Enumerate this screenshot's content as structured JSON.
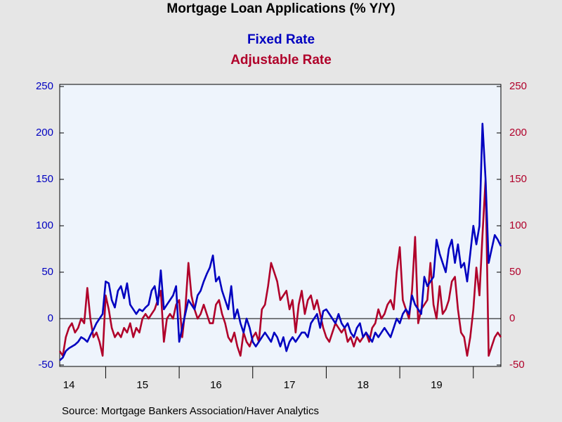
{
  "chart_data": {
    "type": "line",
    "title": "Mortgage Loan Applications (% Y/Y)",
    "source": "Source:  Mortgage Bankers Association/Haver Analytics",
    "categories": [
      null,
      null,
      null,
      "14",
      null,
      null,
      null,
      null,
      null,
      null,
      null,
      null,
      null,
      null,
      null,
      null,
      null,
      null,
      null,
      null,
      null,
      null,
      null,
      null,
      null,
      null,
      null,
      "15",
      null,
      null,
      null,
      null,
      null,
      null,
      null,
      null,
      null,
      null,
      null,
      null,
      null,
      null,
      null,
      null,
      null,
      null,
      null,
      null,
      null,
      null,
      null,
      "16",
      null,
      null,
      null,
      null,
      null,
      null,
      null,
      null,
      null,
      null,
      null,
      null,
      null,
      null,
      null,
      null,
      null,
      null,
      null,
      null,
      null,
      null,
      null,
      "17",
      null,
      null,
      null,
      null,
      null,
      null,
      null,
      null,
      null,
      null,
      null,
      null,
      null,
      null,
      null,
      null,
      null,
      null,
      null,
      null,
      null,
      null,
      null,
      "18",
      null,
      null,
      null,
      null,
      null,
      null,
      null,
      null,
      null,
      null,
      null,
      null,
      null,
      null,
      null,
      null,
      null,
      null,
      null,
      null,
      null,
      null,
      null,
      "19",
      null,
      null,
      null,
      null,
      null,
      null,
      null,
      null,
      null,
      null,
      null,
      null,
      null,
      null,
      null,
      null,
      null,
      null,
      null,
      null,
      null
    ],
    "series": [
      {
        "name": "Fixed Rate",
        "color": "#0000c0",
        "axis": "y",
        "values": [
          -45,
          -42,
          -35,
          -32,
          -30,
          -28,
          -25,
          -20,
          -22,
          -25,
          -18,
          -12,
          -5,
          0,
          5,
          40,
          38,
          20,
          12,
          30,
          35,
          22,
          38,
          15,
          10,
          5,
          10,
          8,
          12,
          15,
          30,
          35,
          15,
          52,
          10,
          15,
          20,
          25,
          35,
          -25,
          -10,
          5,
          20,
          15,
          10,
          25,
          30,
          40,
          48,
          55,
          68,
          40,
          45,
          30,
          20,
          10,
          35,
          0,
          10,
          -5,
          -15,
          0,
          -10,
          -25,
          -30,
          -25,
          -20,
          -15,
          -20,
          -25,
          -15,
          -20,
          -30,
          -20,
          -35,
          -25,
          -20,
          -25,
          -20,
          -15,
          -15,
          -20,
          -5,
          0,
          5,
          -10,
          8,
          10,
          5,
          0,
          -5,
          5,
          -5,
          -10,
          -5,
          -15,
          -20,
          -10,
          -5,
          -20,
          -15,
          -20,
          -25,
          -15,
          -20,
          -15,
          -10,
          -15,
          -20,
          -10,
          0,
          -5,
          5,
          10,
          5,
          25,
          15,
          10,
          5,
          45,
          35,
          40,
          45,
          85,
          70,
          60,
          50,
          75,
          85,
          60,
          80,
          55,
          60,
          40,
          70,
          100,
          80,
          100,
          210,
          150,
          60,
          75,
          90,
          85,
          78
        ]
      },
      {
        "name": "Adjustable Rate",
        "color": "#b0002a",
        "axis": "y2",
        "values": [
          -35,
          -40,
          -20,
          -10,
          -5,
          -15,
          -10,
          0,
          -5,
          33,
          0,
          -20,
          -15,
          -25,
          -40,
          25,
          10,
          -10,
          -20,
          -15,
          -20,
          -10,
          -15,
          -5,
          -20,
          -10,
          -15,
          0,
          5,
          0,
          5,
          10,
          20,
          30,
          -25,
          0,
          5,
          0,
          15,
          20,
          -20,
          10,
          60,
          25,
          10,
          0,
          5,
          15,
          5,
          -5,
          -5,
          15,
          20,
          5,
          -5,
          -20,
          -25,
          -15,
          -30,
          -40,
          -15,
          -25,
          -30,
          -20,
          -15,
          -25,
          10,
          15,
          35,
          60,
          50,
          40,
          20,
          25,
          30,
          10,
          20,
          -15,
          15,
          30,
          5,
          20,
          25,
          10,
          20,
          5,
          -10,
          -20,
          -25,
          -15,
          -5,
          -10,
          -15,
          -10,
          -25,
          -20,
          -30,
          -20,
          -25,
          -20,
          -15,
          -25,
          -10,
          -5,
          10,
          0,
          5,
          15,
          20,
          10,
          50,
          77,
          20,
          10,
          0,
          30,
          88,
          -5,
          10,
          15,
          20,
          60,
          15,
          0,
          35,
          5,
          10,
          20,
          40,
          45,
          10,
          -15,
          -20,
          -40,
          -20,
          10,
          55,
          25,
          90,
          150,
          -40,
          -30,
          -20,
          -15,
          -20
        ]
      }
    ],
    "ylim": [
      -50,
      250
    ],
    "yticks": [
      -50,
      0,
      50,
      100,
      150,
      200,
      250
    ],
    "y2lim": [
      -50,
      250
    ],
    "y2ticks": [
      -50,
      0,
      50,
      100,
      150,
      200,
      250
    ],
    "zero_line": true
  }
}
